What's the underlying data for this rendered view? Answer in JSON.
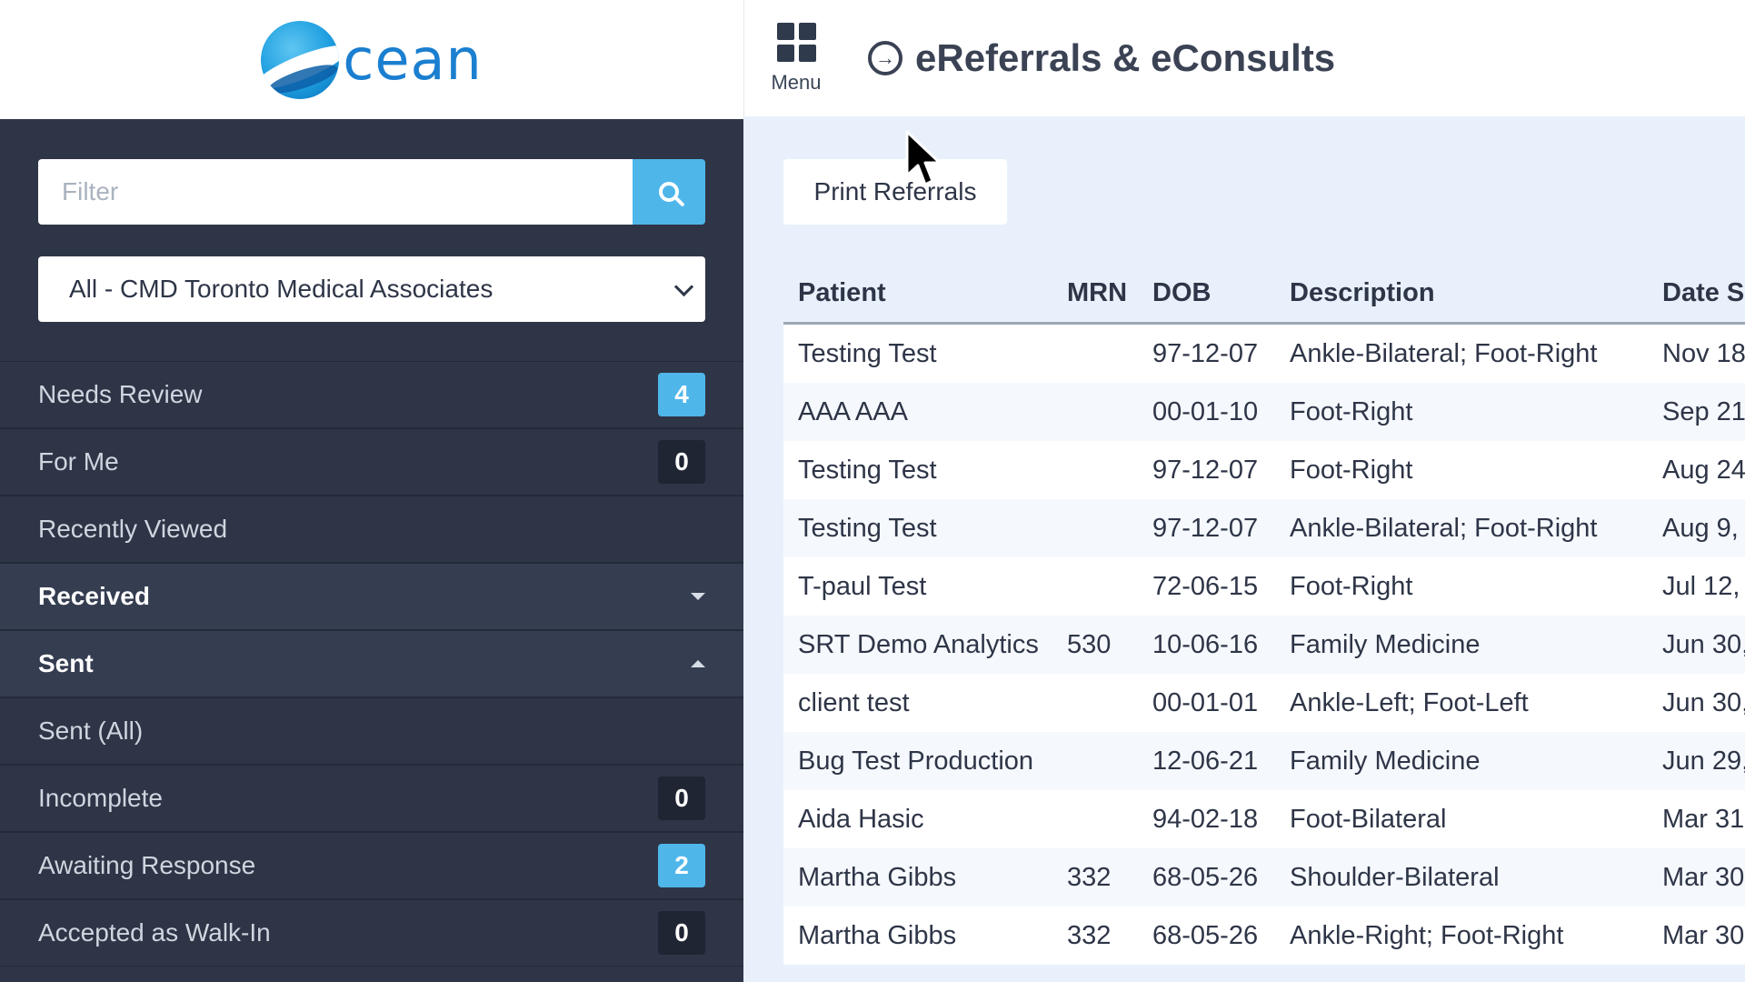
{
  "header": {
    "logo_text": "cean",
    "menu_label": "Menu",
    "title": "eReferrals & eConsults"
  },
  "sidebar": {
    "filter_placeholder": "Filter",
    "org_select_value": "All - CMD Toronto Medical Associates",
    "items": [
      {
        "label": "Needs Review",
        "badge": "4",
        "badge_style": "blue"
      },
      {
        "label": "For Me",
        "badge": "0",
        "badge_style": "dark"
      },
      {
        "label": "Recently Viewed"
      },
      {
        "label": "Received",
        "section": true,
        "caret": "down"
      },
      {
        "label": "Sent",
        "section": true,
        "caret": "up"
      },
      {
        "label": "Sent (All)"
      },
      {
        "label": "Incomplete",
        "badge": "0",
        "badge_style": "dark"
      },
      {
        "label": "Awaiting Response",
        "badge": "2",
        "badge_style": "blue"
      },
      {
        "label": "Accepted as Walk-In",
        "badge": "0",
        "badge_style": "dark"
      }
    ]
  },
  "main": {
    "print_button": "Print Referrals",
    "columns": [
      "Patient",
      "MRN",
      "DOB",
      "Description",
      "Date Se"
    ],
    "rows": [
      [
        "Testing Test",
        "",
        "97-12-07",
        "Ankle-Bilateral; Foot-Right",
        "Nov 18"
      ],
      [
        "AAA AAA",
        "",
        "00-01-10",
        "Foot-Right",
        "Sep 21,"
      ],
      [
        "Testing Test",
        "",
        "97-12-07",
        "Foot-Right",
        "Aug 24"
      ],
      [
        "Testing Test",
        "",
        "97-12-07",
        "Ankle-Bilateral; Foot-Right",
        "Aug 9, "
      ],
      [
        "T-paul Test",
        "",
        "72-06-15",
        "Foot-Right",
        "Jul 12,"
      ],
      [
        "SRT Demo Analytics",
        "530",
        "10-06-16",
        "Family Medicine",
        "Jun 30,"
      ],
      [
        "client test",
        "",
        "00-01-01",
        "Ankle-Left; Foot-Left",
        "Jun 30,"
      ],
      [
        "Bug Test Production",
        "",
        "12-06-21",
        "Family Medicine",
        "Jun 29,"
      ],
      [
        "Aida Hasic",
        "",
        "94-02-18",
        "Foot-Bilateral",
        "Mar 31"
      ],
      [
        "Martha Gibbs",
        "332",
        "68-05-26",
        "Shoulder-Bilateral",
        "Mar 30"
      ],
      [
        "Martha Gibbs",
        "332",
        "68-05-26",
        "Ankle-Right; Foot-Right",
        "Mar 30"
      ]
    ]
  },
  "colors": {
    "sidebar_bg": "#2e3547",
    "accent_blue": "#4fb6ea",
    "main_bg": "#e8f1fb"
  },
  "icons": [
    "logo-icon",
    "grid-menu-icon",
    "arrow-circle-icon",
    "search-icon",
    "chevron-down-icon",
    "caret-down-icon",
    "caret-up-icon",
    "mouse-cursor-icon"
  ]
}
